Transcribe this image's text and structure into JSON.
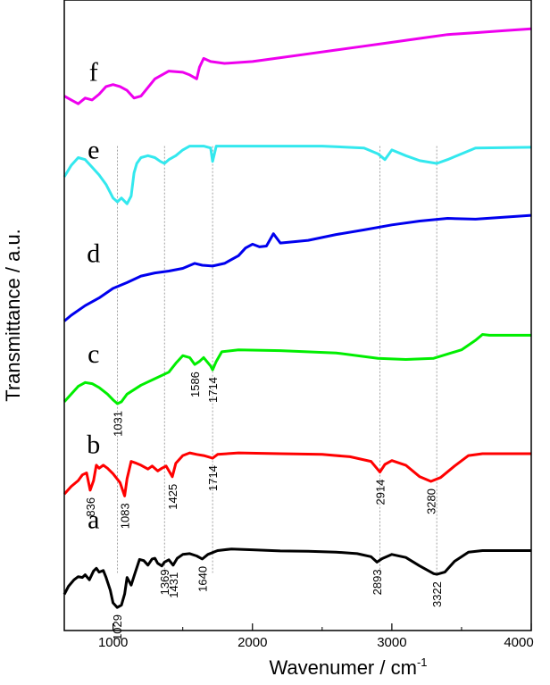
{
  "chart_data": {
    "type": "line",
    "title": "",
    "xlabel": "Wavenumer / cm",
    "xlabel_sup": "-1",
    "ylabel": "Transmittance / a.u.",
    "xlim": [
      650,
      4000
    ],
    "x_ticks": [
      "1000",
      "2000",
      "3000",
      "4000"
    ],
    "grid": false,
    "series": [
      {
        "name": "a",
        "color": "#000000",
        "points": [
          [
            650,
            0.34
          ],
          [
            680,
            0.55
          ],
          [
            720,
            0.72
          ],
          [
            750,
            0.8
          ],
          [
            780,
            0.78
          ],
          [
            800,
            0.85
          ],
          [
            830,
            0.72
          ],
          [
            860,
            0.95
          ],
          [
            880,
            1.02
          ],
          [
            900,
            0.92
          ],
          [
            930,
            0.96
          ],
          [
            950,
            0.78
          ],
          [
            980,
            0.45
          ],
          [
            1000,
            0.12
          ],
          [
            1030,
            0.0
          ],
          [
            1060,
            0.06
          ],
          [
            1083,
            0.35
          ],
          [
            1100,
            0.78
          ],
          [
            1130,
            0.58
          ],
          [
            1160,
            0.92
          ],
          [
            1190,
            1.25
          ],
          [
            1220,
            1.22
          ],
          [
            1250,
            1.1
          ],
          [
            1280,
            1.26
          ],
          [
            1300,
            1.28
          ],
          [
            1320,
            1.15
          ],
          [
            1350,
            1.08
          ],
          [
            1369,
            1.18
          ],
          [
            1400,
            1.24
          ],
          [
            1431,
            1.1
          ],
          [
            1460,
            1.28
          ],
          [
            1500,
            1.38
          ],
          [
            1550,
            1.4
          ],
          [
            1600,
            1.34
          ],
          [
            1640,
            1.26
          ],
          [
            1680,
            1.38
          ],
          [
            1750,
            1.48
          ],
          [
            1850,
            1.52
          ],
          [
            2000,
            1.5
          ],
          [
            2200,
            1.47
          ],
          [
            2400,
            1.46
          ],
          [
            2600,
            1.44
          ],
          [
            2750,
            1.4
          ],
          [
            2850,
            1.32
          ],
          [
            2893,
            1.18
          ],
          [
            2930,
            1.27
          ],
          [
            3000,
            1.38
          ],
          [
            3100,
            1.3
          ],
          [
            3200,
            1.08
          ],
          [
            3300,
            0.88
          ],
          [
            3322,
            0.86
          ],
          [
            3380,
            0.92
          ],
          [
            3450,
            1.2
          ],
          [
            3550,
            1.44
          ],
          [
            3650,
            1.48
          ],
          [
            4000,
            1.48
          ]
        ]
      },
      {
        "name": "b",
        "color": "#ff0000",
        "points": [
          [
            650,
            2.95
          ],
          [
            700,
            3.15
          ],
          [
            750,
            3.3
          ],
          [
            780,
            3.45
          ],
          [
            810,
            3.5
          ],
          [
            836,
            3.05
          ],
          [
            860,
            3.3
          ],
          [
            880,
            3.7
          ],
          [
            900,
            3.62
          ],
          [
            930,
            3.7
          ],
          [
            960,
            3.62
          ],
          [
            1000,
            3.48
          ],
          [
            1050,
            3.25
          ],
          [
            1083,
            2.9
          ],
          [
            1100,
            3.35
          ],
          [
            1130,
            3.8
          ],
          [
            1160,
            3.76
          ],
          [
            1200,
            3.7
          ],
          [
            1250,
            3.6
          ],
          [
            1280,
            3.68
          ],
          [
            1320,
            3.55
          ],
          [
            1350,
            3.62
          ],
          [
            1380,
            3.68
          ],
          [
            1425,
            3.4
          ],
          [
            1450,
            3.75
          ],
          [
            1500,
            3.95
          ],
          [
            1550,
            4.02
          ],
          [
            1600,
            3.98
          ],
          [
            1650,
            3.95
          ],
          [
            1700,
            3.9
          ],
          [
            1714,
            3.88
          ],
          [
            1750,
            3.98
          ],
          [
            1900,
            4.02
          ],
          [
            2200,
            4.0
          ],
          [
            2500,
            3.98
          ],
          [
            2700,
            3.92
          ],
          [
            2850,
            3.8
          ],
          [
            2914,
            3.52
          ],
          [
            2950,
            3.72
          ],
          [
            3000,
            3.82
          ],
          [
            3100,
            3.7
          ],
          [
            3200,
            3.4
          ],
          [
            3280,
            3.28
          ],
          [
            3350,
            3.38
          ],
          [
            3450,
            3.68
          ],
          [
            3550,
            3.95
          ],
          [
            3650,
            4.0
          ],
          [
            4000,
            4.0
          ]
        ]
      },
      {
        "name": "c",
        "color": "#00ee00",
        "points": [
          [
            650,
            5.35
          ],
          [
            700,
            5.55
          ],
          [
            750,
            5.75
          ],
          [
            800,
            5.85
          ],
          [
            850,
            5.82
          ],
          [
            900,
            5.72
          ],
          [
            960,
            5.55
          ],
          [
            1000,
            5.4
          ],
          [
            1031,
            5.3
          ],
          [
            1060,
            5.35
          ],
          [
            1100,
            5.55
          ],
          [
            1200,
            5.78
          ],
          [
            1300,
            5.95
          ],
          [
            1400,
            6.12
          ],
          [
            1450,
            6.35
          ],
          [
            1500,
            6.55
          ],
          [
            1550,
            6.5
          ],
          [
            1586,
            6.32
          ],
          [
            1620,
            6.4
          ],
          [
            1650,
            6.5
          ],
          [
            1700,
            6.28
          ],
          [
            1714,
            6.18
          ],
          [
            1740,
            6.4
          ],
          [
            1780,
            6.65
          ],
          [
            1900,
            6.7
          ],
          [
            2200,
            6.68
          ],
          [
            2600,
            6.62
          ],
          [
            2900,
            6.48
          ],
          [
            3100,
            6.45
          ],
          [
            3300,
            6.48
          ],
          [
            3500,
            6.7
          ],
          [
            3600,
            6.95
          ],
          [
            3650,
            7.1
          ],
          [
            3700,
            7.08
          ],
          [
            4000,
            7.08
          ]
        ]
      },
      {
        "name": "d",
        "color": "#0000ee",
        "points": [
          [
            650,
            7.45
          ],
          [
            700,
            7.6
          ],
          [
            800,
            7.85
          ],
          [
            900,
            8.05
          ],
          [
            1000,
            8.3
          ],
          [
            1100,
            8.45
          ],
          [
            1200,
            8.62
          ],
          [
            1300,
            8.7
          ],
          [
            1400,
            8.75
          ],
          [
            1500,
            8.82
          ],
          [
            1586,
            8.95
          ],
          [
            1640,
            8.9
          ],
          [
            1714,
            8.88
          ],
          [
            1800,
            8.95
          ],
          [
            1900,
            9.15
          ],
          [
            1950,
            9.35
          ],
          [
            2000,
            9.45
          ],
          [
            2050,
            9.38
          ],
          [
            2100,
            9.4
          ],
          [
            2150,
            9.72
          ],
          [
            2200,
            9.48
          ],
          [
            2400,
            9.55
          ],
          [
            2600,
            9.7
          ],
          [
            2800,
            9.82
          ],
          [
            3000,
            9.95
          ],
          [
            3200,
            10.05
          ],
          [
            3400,
            10.12
          ],
          [
            3600,
            10.1
          ],
          [
            3800,
            10.15
          ],
          [
            4000,
            10.2
          ]
        ]
      },
      {
        "name": "e",
        "color": "#33e8ee",
        "points": [
          [
            650,
            11.2
          ],
          [
            700,
            11.5
          ],
          [
            750,
            11.7
          ],
          [
            800,
            11.65
          ],
          [
            850,
            11.45
          ],
          [
            900,
            11.25
          ],
          [
            950,
            11.0
          ],
          [
            1000,
            10.65
          ],
          [
            1031,
            10.55
          ],
          [
            1060,
            10.65
          ],
          [
            1100,
            10.5
          ],
          [
            1130,
            10.7
          ],
          [
            1150,
            11.3
          ],
          [
            1170,
            11.55
          ],
          [
            1200,
            11.7
          ],
          [
            1250,
            11.75
          ],
          [
            1300,
            11.7
          ],
          [
            1340,
            11.6
          ],
          [
            1369,
            11.55
          ],
          [
            1400,
            11.65
          ],
          [
            1450,
            11.75
          ],
          [
            1500,
            11.9
          ],
          [
            1550,
            12.0
          ],
          [
            1600,
            12.0
          ],
          [
            1650,
            12.0
          ],
          [
            1700,
            11.95
          ],
          [
            1714,
            11.6
          ],
          [
            1740,
            12.0
          ],
          [
            1900,
            12.0
          ],
          [
            2500,
            12.0
          ],
          [
            2800,
            11.95
          ],
          [
            2900,
            11.8
          ],
          [
            2950,
            11.65
          ],
          [
            3000,
            11.9
          ],
          [
            3100,
            11.75
          ],
          [
            3200,
            11.62
          ],
          [
            3322,
            11.55
          ],
          [
            3400,
            11.65
          ],
          [
            3500,
            11.8
          ],
          [
            3600,
            11.95
          ],
          [
            4000,
            11.97
          ]
        ]
      },
      {
        "name": "f",
        "color": "#ee00ee",
        "points": [
          [
            650,
            13.3
          ],
          [
            700,
            13.2
          ],
          [
            750,
            13.1
          ],
          [
            800,
            13.25
          ],
          [
            850,
            13.2
          ],
          [
            900,
            13.35
          ],
          [
            950,
            13.55
          ],
          [
            1000,
            13.6
          ],
          [
            1050,
            13.55
          ],
          [
            1100,
            13.45
          ],
          [
            1150,
            13.25
          ],
          [
            1200,
            13.3
          ],
          [
            1300,
            13.75
          ],
          [
            1400,
            13.95
          ],
          [
            1500,
            13.92
          ],
          [
            1550,
            13.85
          ],
          [
            1600,
            13.75
          ],
          [
            1620,
            14.05
          ],
          [
            1650,
            14.28
          ],
          [
            1700,
            14.2
          ],
          [
            1800,
            14.15
          ],
          [
            2000,
            14.2
          ],
          [
            2200,
            14.3
          ],
          [
            2400,
            14.4
          ],
          [
            2600,
            14.5
          ],
          [
            2800,
            14.6
          ],
          [
            3000,
            14.7
          ],
          [
            3200,
            14.8
          ],
          [
            3400,
            14.9
          ],
          [
            3600,
            14.95
          ],
          [
            3800,
            15.0
          ],
          [
            4000,
            15.05
          ]
        ]
      }
    ],
    "peak_labels": [
      {
        "text": "1029",
        "series": "a",
        "x": 1029
      },
      {
        "text": "1369",
        "series": "a",
        "x": 1369
      },
      {
        "text": "1431",
        "series": "a",
        "x": 1431
      },
      {
        "text": "1640",
        "series": "a",
        "x": 1640
      },
      {
        "text": "2893",
        "series": "a",
        "x": 2893
      },
      {
        "text": "3322",
        "series": "a",
        "x": 3322
      },
      {
        "text": "836",
        "series": "b",
        "x": 836
      },
      {
        "text": "1083",
        "series": "b",
        "x": 1083
      },
      {
        "text": "1425",
        "series": "b",
        "x": 1425
      },
      {
        "text": "1714",
        "series": "b",
        "x": 1714
      },
      {
        "text": "2914",
        "series": "b",
        "x": 2914
      },
      {
        "text": "3280",
        "series": "b",
        "x": 3280
      },
      {
        "text": "1031",
        "series": "c",
        "x": 1031
      },
      {
        "text": "1586",
        "series": "c",
        "x": 1586
      },
      {
        "text": "1714",
        "series": "c",
        "x": 1714
      }
    ],
    "reference_lines_x": [
      1031,
      1369,
      1714,
      2914,
      3322
    ]
  }
}
